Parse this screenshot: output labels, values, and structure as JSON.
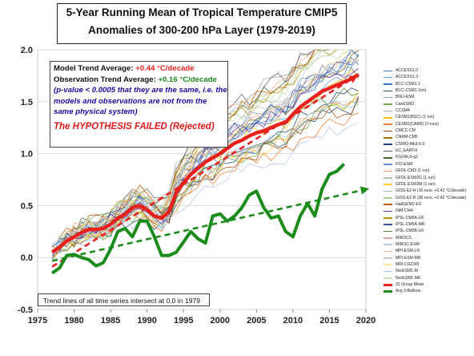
{
  "title": {
    "line1": "5-Year Running Mean of Tropical Temperature CMIP5",
    "line2": "Anomalies of 300-200 hPa Layer (1979-2019)"
  },
  "info_box": {
    "model_label": "Model Trend Average: ",
    "model_value": "+0.44 °C/decade",
    "obs_label": "Observation Trend Average: ",
    "obs_value": "+0.16 °C/decade",
    "note": "(p-value < 0.0005 that they are the same, i.e. the models and observations are not from the same physical system)",
    "verdict": "The HYPOTHESIS FAILED (Rejected)"
  },
  "trend_note": "Trend lines of all time series intersect at 0.0 in 1979",
  "colors": {
    "mean": "#e8211e",
    "obs": "#1b8c1b",
    "model_value_text": "#e8211e",
    "obs_value_text": "#1b8c1b",
    "note_text": "#1a0aa6"
  },
  "chart_data": {
    "type": "line",
    "xlim": [
      1975,
      2020
    ],
    "ylim": [
      -0.5,
      2.0
    ],
    "x_ticks": [
      "1975",
      "1980",
      "1985",
      "1990",
      "1995",
      "2000",
      "2005",
      "2010",
      "2015",
      "2020"
    ],
    "y_ticks": [
      "-0.5",
      "0.0",
      "0.5",
      "1.0",
      "1.5",
      "2.0"
    ],
    "grid": true,
    "legend_position": "right",
    "legend": [
      {
        "name": "ACCESS1.0",
        "color": "#4472c4"
      },
      {
        "name": "ACCESS1.3",
        "color": "#5b9bd5"
      },
      {
        "name": "BCC-CSM1.1",
        "color": "#2e75b6"
      },
      {
        "name": "BCC-CSM1.1(m)",
        "color": "#1f4e79"
      },
      {
        "name": "BNU-ESM",
        "color": "#7f9fcf"
      },
      {
        "name": "CanESM2",
        "color": "#70ad47"
      },
      {
        "name": "CCSM4",
        "color": "#a5a5a5"
      },
      {
        "name": "CESM1(BGC) (1 run)",
        "color": "#ffc000"
      },
      {
        "name": "CESM1(CAM5) (3 runs)",
        "color": "#ed7d31"
      },
      {
        "name": "CMCC-CM",
        "color": "#9e480e"
      },
      {
        "name": "CNRM-CM5",
        "color": "#997300"
      },
      {
        "name": "CSIRO-Mk3-6-0",
        "color": "#264478"
      },
      {
        "name": "EC_EARTH",
        "color": "#636363"
      },
      {
        "name": "FGOALS-g2",
        "color": "#43682b"
      },
      {
        "name": "FIO-ESM",
        "color": "#698ed0"
      },
      {
        "name": "GFDL-CM3 (1 run)",
        "color": "#f1975a"
      },
      {
        "name": "GFDL-ESM2G (1 run)",
        "color": "#b7b7b7"
      },
      {
        "name": "GFDL-ESM2M (1 run)",
        "color": "#ffcd33"
      },
      {
        "name": "GISS-E2-H (16 runs, +0.42 °C/decade)",
        "color": "#8faadc"
      },
      {
        "name": "GISS-E2-R (38 runs, +0.42 °C/decade)",
        "color": "#a9d18e"
      },
      {
        "name": "HadGEM2-ES",
        "color": "#c55a11"
      },
      {
        "name": "INM-CM4",
        "color": "#7030a0"
      },
      {
        "name": "IPSL-CM5A-LR",
        "color": "#bf9000"
      },
      {
        "name": "IPSL-CM5A-MR",
        "color": "#2f5597"
      },
      {
        "name": "IPSL-CM5B-LR",
        "color": "#548235"
      },
      {
        "name": "MIROC5",
        "color": "#d6a4a4"
      },
      {
        "name": "MIROC-ESM",
        "color": "#b4c7e7"
      },
      {
        "name": "MPI-ESM-LR",
        "color": "#f4b183"
      },
      {
        "name": "MPI-ESM-MR",
        "color": "#c9c9c9"
      },
      {
        "name": "MRI-CGCM3",
        "color": "#ffe699"
      },
      {
        "name": "NorESM1-M",
        "color": "#9dc3e6"
      },
      {
        "name": "NorESM1-ME",
        "color": "#c5e0b4"
      },
      {
        "name": "32 Group Mean",
        "color": "#e8211e"
      },
      {
        "name": "Avg 3-Balloon",
        "color": "#1b8c1b"
      }
    ],
    "series": [
      {
        "name": "32 Group Mean",
        "x": [
          1977,
          1978,
          1979,
          1980,
          1981,
          1982,
          1983,
          1984,
          1985,
          1986,
          1987,
          1988,
          1989,
          1990,
          1991,
          1992,
          1993,
          1994,
          1995,
          1996,
          1997,
          1998,
          1999,
          2000,
          2001,
          2002,
          2003,
          2004,
          2005,
          2006,
          2007,
          2008,
          2009,
          2010,
          2011,
          2012,
          2013,
          2014,
          2015,
          2016,
          2017,
          2018,
          2019
        ],
        "y": [
          0.05,
          0.1,
          0.16,
          0.2,
          0.24,
          0.27,
          0.27,
          0.28,
          0.32,
          0.38,
          0.42,
          0.48,
          0.5,
          0.46,
          0.4,
          0.38,
          0.44,
          0.62,
          0.72,
          0.8,
          0.86,
          0.92,
          0.96,
          1.0,
          1.05,
          1.1,
          1.13,
          1.17,
          1.2,
          1.22,
          1.25,
          1.28,
          1.3,
          1.38,
          1.45,
          1.5,
          1.55,
          1.6,
          1.63,
          1.66,
          1.69,
          1.72,
          1.76
        ]
      },
      {
        "name": "Avg 3-Balloon",
        "x": [
          1977,
          1978,
          1979,
          1980,
          1981,
          1982,
          1983,
          1984,
          1985,
          1986,
          1987,
          1988,
          1989,
          1990,
          1991,
          1992,
          1993,
          1994,
          1995,
          1996,
          1997,
          1998,
          1999,
          2000,
          2001,
          2002,
          2003,
          2004,
          2005,
          2006,
          2007,
          2008,
          2009,
          2010,
          2011,
          2012,
          2013,
          2014,
          2015,
          2016,
          2017
        ],
        "y": [
          -0.15,
          -0.1,
          0.02,
          0.03,
          0.0,
          -0.02,
          -0.08,
          -0.05,
          0.08,
          0.25,
          0.28,
          0.2,
          0.35,
          0.35,
          0.2,
          0.02,
          0.02,
          0.05,
          0.15,
          0.25,
          0.18,
          0.14,
          0.4,
          0.42,
          0.35,
          0.4,
          0.48,
          0.6,
          0.64,
          0.48,
          0.38,
          0.4,
          0.25,
          0.2,
          0.4,
          0.52,
          0.4,
          0.66,
          0.8,
          0.83,
          0.9
        ]
      }
    ],
    "trend_lines": [
      {
        "name": "Model Trend Average",
        "slope_per_decade": 0.44,
        "zero_year": 1979,
        "color": "#e8211e"
      },
      {
        "name": "Observation Trend Average",
        "slope_per_decade": 0.16,
        "zero_year": 1979,
        "color": "#1b8c1b"
      }
    ]
  }
}
